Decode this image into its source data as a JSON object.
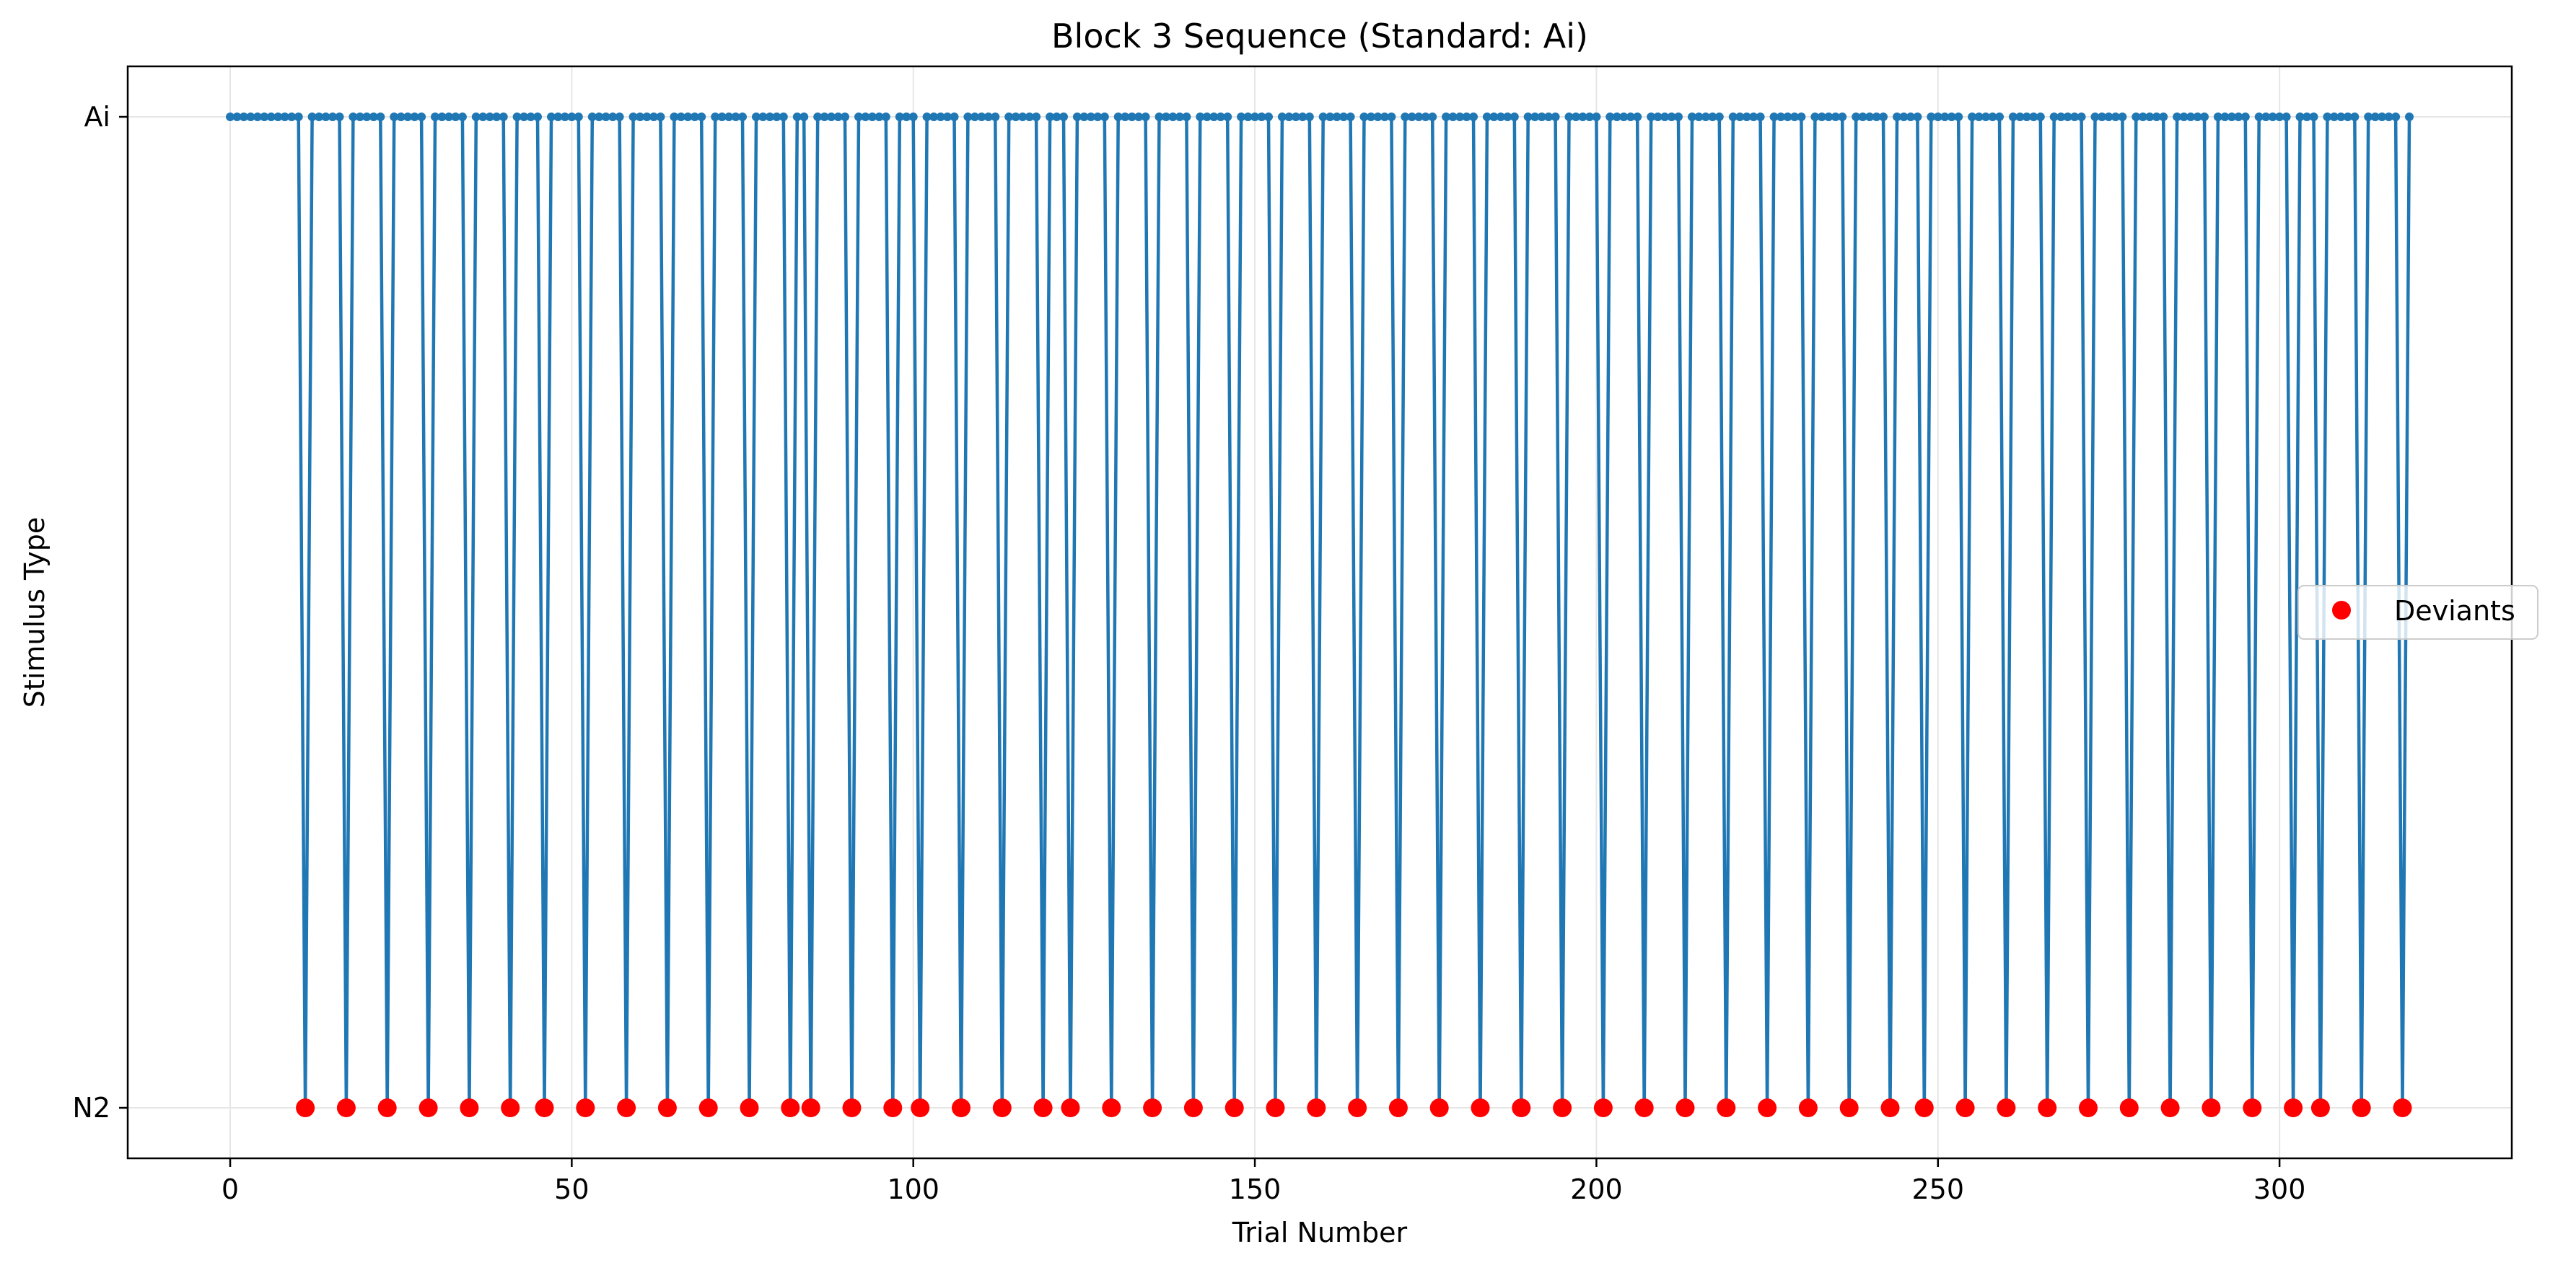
{
  "chart_data": {
    "type": "line",
    "title": "Block 3 Sequence (Standard: Ai)",
    "xlabel": "Trial Number",
    "ylabel": "Stimulus Type",
    "xlim": [
      -15,
      334
    ],
    "x_ticks": [
      0,
      50,
      100,
      150,
      200,
      250,
      300
    ],
    "y_categories": [
      "N2",
      "Ai"
    ],
    "grid": true,
    "legend_position": "center-right",
    "n_trials": 320,
    "series": [
      {
        "values_description": "trial sequence",
        "color": "#1f77b4",
        "marker": "small-dot"
      },
      {
        "name": "Deviants",
        "color": "#ff0000",
        "marker": "circle"
      }
    ],
    "deviant_trials": [
      11,
      17,
      23,
      29,
      35,
      41,
      46,
      52,
      58,
      64,
      70,
      76,
      82,
      85,
      91,
      97,
      101,
      107,
      113,
      119,
      123,
      129,
      135,
      141,
      147,
      153,
      159,
      165,
      171,
      177,
      183,
      189,
      195,
      201,
      207,
      213,
      219,
      225,
      231,
      237,
      243,
      248,
      254,
      260,
      266,
      272,
      278,
      284,
      290,
      296,
      302,
      306,
      312,
      318
    ]
  }
}
